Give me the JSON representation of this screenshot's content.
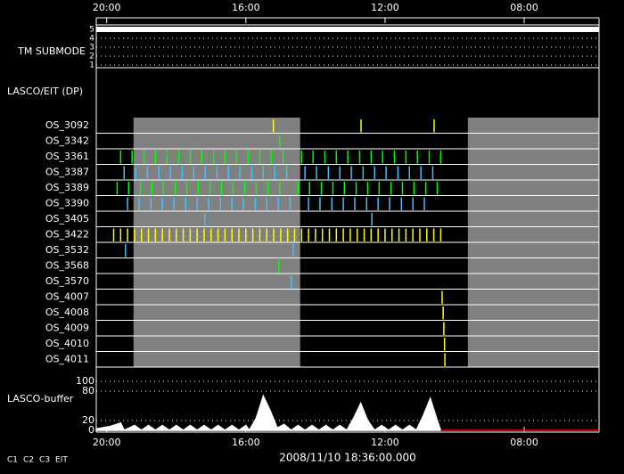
{
  "chart_data": {
    "type": "timeline",
    "xlim": [
      20.3,
      5.85
    ],
    "xticks": [
      {
        "value": 20,
        "label": "20:00"
      },
      {
        "value": 16,
        "label": "16:00"
      },
      {
        "value": 12,
        "label": "12:00"
      },
      {
        "value": 8,
        "label": "08:00"
      }
    ],
    "tm_label": "TM SUBMODE",
    "tm_ticks": [
      5,
      4,
      3,
      2,
      1
    ],
    "tm_values": [
      5,
      5
    ],
    "tm_x": [
      20.3,
      5.85
    ],
    "dp_label": "LASCO/EIT (DP)",
    "shaded_spans": [
      [
        19.23,
        14.44
      ],
      [
        9.62,
        5.85
      ]
    ],
    "rows": [
      {
        "name": "OS_3092",
        "color": "#ffff00",
        "events": [
          15.21,
          12.69,
          10.59
        ]
      },
      {
        "name": "OS_3342",
        "color": "#00ff00",
        "events": [
          15.03
        ]
      },
      {
        "name": "OS_3361",
        "color": "#00ff00",
        "events": [
          19.6,
          19.27,
          18.93,
          18.6,
          18.27,
          17.93,
          17.6,
          17.27,
          16.93,
          16.6,
          16.27,
          15.93,
          15.6,
          15.27,
          14.93,
          14.4,
          14.07,
          13.73,
          13.4,
          13.07,
          12.73,
          12.4,
          12.07,
          11.73,
          11.4,
          11.07,
          10.73,
          10.4
        ]
      },
      {
        "name": "OS_3387",
        "color": "#40c0ff",
        "events": [
          19.5,
          19.17,
          18.83,
          18.5,
          18.17,
          17.83,
          17.5,
          17.17,
          16.83,
          16.5,
          16.17,
          15.83,
          15.5,
          15.17,
          14.83,
          14.3,
          13.97,
          13.63,
          13.3,
          12.97,
          12.63,
          12.3,
          11.97,
          11.63,
          11.3,
          10.97,
          10.63
        ]
      },
      {
        "name": "OS_3389",
        "color": "#00ff00",
        "events": [
          19.7,
          19.37,
          19.03,
          18.7,
          18.37,
          18.03,
          17.7,
          17.37,
          17.03,
          16.7,
          16.37,
          16.03,
          15.7,
          15.37,
          15.03,
          14.5,
          14.17,
          13.83,
          13.5,
          13.17,
          12.83,
          12.5,
          12.17,
          11.83,
          11.5,
          11.17,
          10.83,
          10.5
        ]
      },
      {
        "name": "OS_3390",
        "color": "#40c0ff",
        "events": [
          19.4,
          19.07,
          18.73,
          18.4,
          18.07,
          17.73,
          17.4,
          17.07,
          16.73,
          16.4,
          16.07,
          15.73,
          15.4,
          15.07,
          14.73,
          14.2,
          13.87,
          13.53,
          13.2,
          12.87,
          12.53,
          12.2,
          11.87,
          11.53,
          11.2,
          10.87
        ]
      },
      {
        "name": "OS_3405",
        "color": "#40c0ff",
        "events": [
          17.18,
          12.38
        ]
      },
      {
        "name": "OS_3422",
        "color": "#ffff00",
        "events": [
          19.8,
          19.6,
          19.4,
          19.2,
          19,
          18.8,
          18.6,
          18.4,
          18.2,
          18,
          17.8,
          17.6,
          17.4,
          17.2,
          17,
          16.8,
          16.6,
          16.4,
          16.2,
          16,
          15.8,
          15.6,
          15.4,
          15.2,
          15,
          14.8,
          14.6,
          14.4,
          14.2,
          14,
          13.8,
          13.6,
          13.4,
          13.2,
          13,
          12.8,
          12.6,
          12.4,
          12.2,
          12,
          11.8,
          11.6,
          11.4,
          11.2,
          11,
          10.8,
          10.6,
          10.4
        ]
      },
      {
        "name": "OS_3532",
        "color": "#40c0ff",
        "events": [
          19.46,
          14.64
        ]
      },
      {
        "name": "OS_3568",
        "color": "#00ff00",
        "events": [
          15.05
        ]
      },
      {
        "name": "OS_3570",
        "color": "#40c0ff",
        "events": [
          14.69
        ]
      },
      {
        "name": "OS_4007",
        "color": "#ffff00",
        "events": [
          10.36
        ]
      },
      {
        "name": "OS_4008",
        "color": "#ffff00",
        "events": [
          10.33
        ]
      },
      {
        "name": "OS_4009",
        "color": "#ffff00",
        "events": [
          10.31
        ]
      },
      {
        "name": "OS_4010",
        "color": "#ffff00",
        "events": [
          10.29
        ]
      },
      {
        "name": "OS_4011",
        "color": "#ffff00",
        "events": [
          10.28
        ]
      }
    ],
    "buffer_label": "LASCO-buffer",
    "ylim": [
      0,
      100
    ],
    "yticks": [
      0,
      20,
      80,
      100
    ],
    "buffer_series": [
      {
        "color": "#ffffff",
        "x": [
          20.3,
          19.9,
          19.6,
          19.5,
          19.2,
          19.0,
          18.8,
          18.6,
          18.4,
          18.2,
          18.0,
          17.8,
          17.6,
          17.4,
          17.2,
          17.0,
          16.8,
          16.6,
          16.4,
          16.2,
          16.0,
          15.9,
          15.7,
          15.5,
          15.3,
          15.1,
          14.9,
          14.7,
          14.5,
          14.3,
          14.1,
          13.9,
          13.7,
          13.5,
          13.3,
          13.1,
          12.9,
          12.7,
          12.5,
          12.3,
          12.1,
          11.9,
          11.7,
          11.5,
          11.3,
          11.1,
          10.9,
          10.7,
          10.5,
          10.4
        ],
        "values": [
          3,
          8,
          15,
          0,
          10,
          0,
          10,
          0,
          10,
          0,
          10,
          0,
          10,
          0,
          10,
          0,
          10,
          0,
          10,
          0,
          10,
          0,
          25,
          70,
          40,
          5,
          12,
          0,
          10,
          0,
          10,
          0,
          10,
          0,
          10,
          0,
          25,
          55,
          20,
          0,
          10,
          0,
          10,
          0,
          10,
          0,
          30,
          65,
          20,
          0
        ]
      },
      {
        "color": "#ff0000",
        "x": [
          10.4,
          5.85
        ],
        "values": [
          0,
          0
        ]
      }
    ],
    "legend": [
      {
        "name": "C1",
        "color": "#ff0000"
      },
      {
        "name": "C2",
        "color": "#00ff00"
      },
      {
        "name": "C3",
        "color": "#ffffff"
      },
      {
        "name": "EIT",
        "color": "#ffffff"
      }
    ],
    "timestamp": "2008/11/10 18:36:00.000"
  }
}
